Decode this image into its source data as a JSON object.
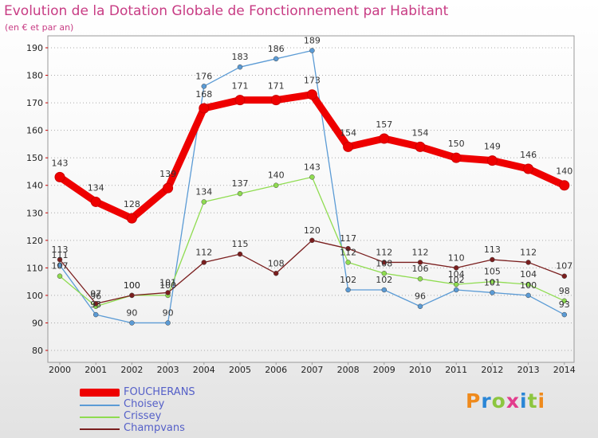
{
  "header": {
    "title": "Evolution de la Dotation Globale de Fonctionnement par Habitant",
    "subtitle": "(en € et par an)"
  },
  "chart_data": {
    "type": "line",
    "title": "Evolution de la Dotation Globale de Fonctionnement par Habitant",
    "subtitle": "(en € et par an)",
    "xlabel": "",
    "ylabel": "",
    "x": [
      "2000",
      "2001",
      "2002",
      "2003",
      "2004",
      "2005",
      "2006",
      "2007",
      "2008",
      "2009",
      "2010",
      "2011",
      "2012",
      "2013",
      "2014"
    ],
    "ylim": [
      80,
      190
    ],
    "yticks": [
      80,
      90,
      100,
      110,
      120,
      130,
      140,
      150,
      160,
      170,
      180,
      190
    ],
    "grid": "horizontal dotted",
    "legend_position": "bottom-left",
    "series": [
      {
        "name": "FOUCHERANS",
        "color": "#ee0000",
        "values": [
          143,
          134,
          128,
          139,
          168,
          171,
          171,
          173,
          154,
          157,
          154,
          150,
          149,
          146,
          140
        ]
      },
      {
        "name": "Choisey",
        "color": "#5b9bd5",
        "values": [
          111,
          93,
          90,
          90,
          176,
          183,
          186,
          189,
          102,
          102,
          96,
          102,
          101,
          100,
          93
        ]
      },
      {
        "name": "Crissey",
        "color": "#8fdc50",
        "values": [
          107,
          96,
          100,
          100,
          134,
          137,
          140,
          143,
          112,
          108,
          106,
          104,
          105,
          104,
          98
        ]
      },
      {
        "name": "Champvans",
        "color": "#7a1e1e",
        "values": [
          113,
          97,
          100,
          101,
          112,
          115,
          108,
          120,
          117,
          112,
          112,
          110,
          113,
          112,
          107
        ]
      }
    ]
  },
  "legend": {
    "items": [
      {
        "name": "FOUCHERANS"
      },
      {
        "name": "Choisey"
      },
      {
        "name": "Crissey"
      },
      {
        "name": "Champvans"
      }
    ]
  },
  "logo": {
    "letters": [
      "P",
      "r",
      "o",
      "x",
      "i",
      "t",
      "i"
    ]
  }
}
